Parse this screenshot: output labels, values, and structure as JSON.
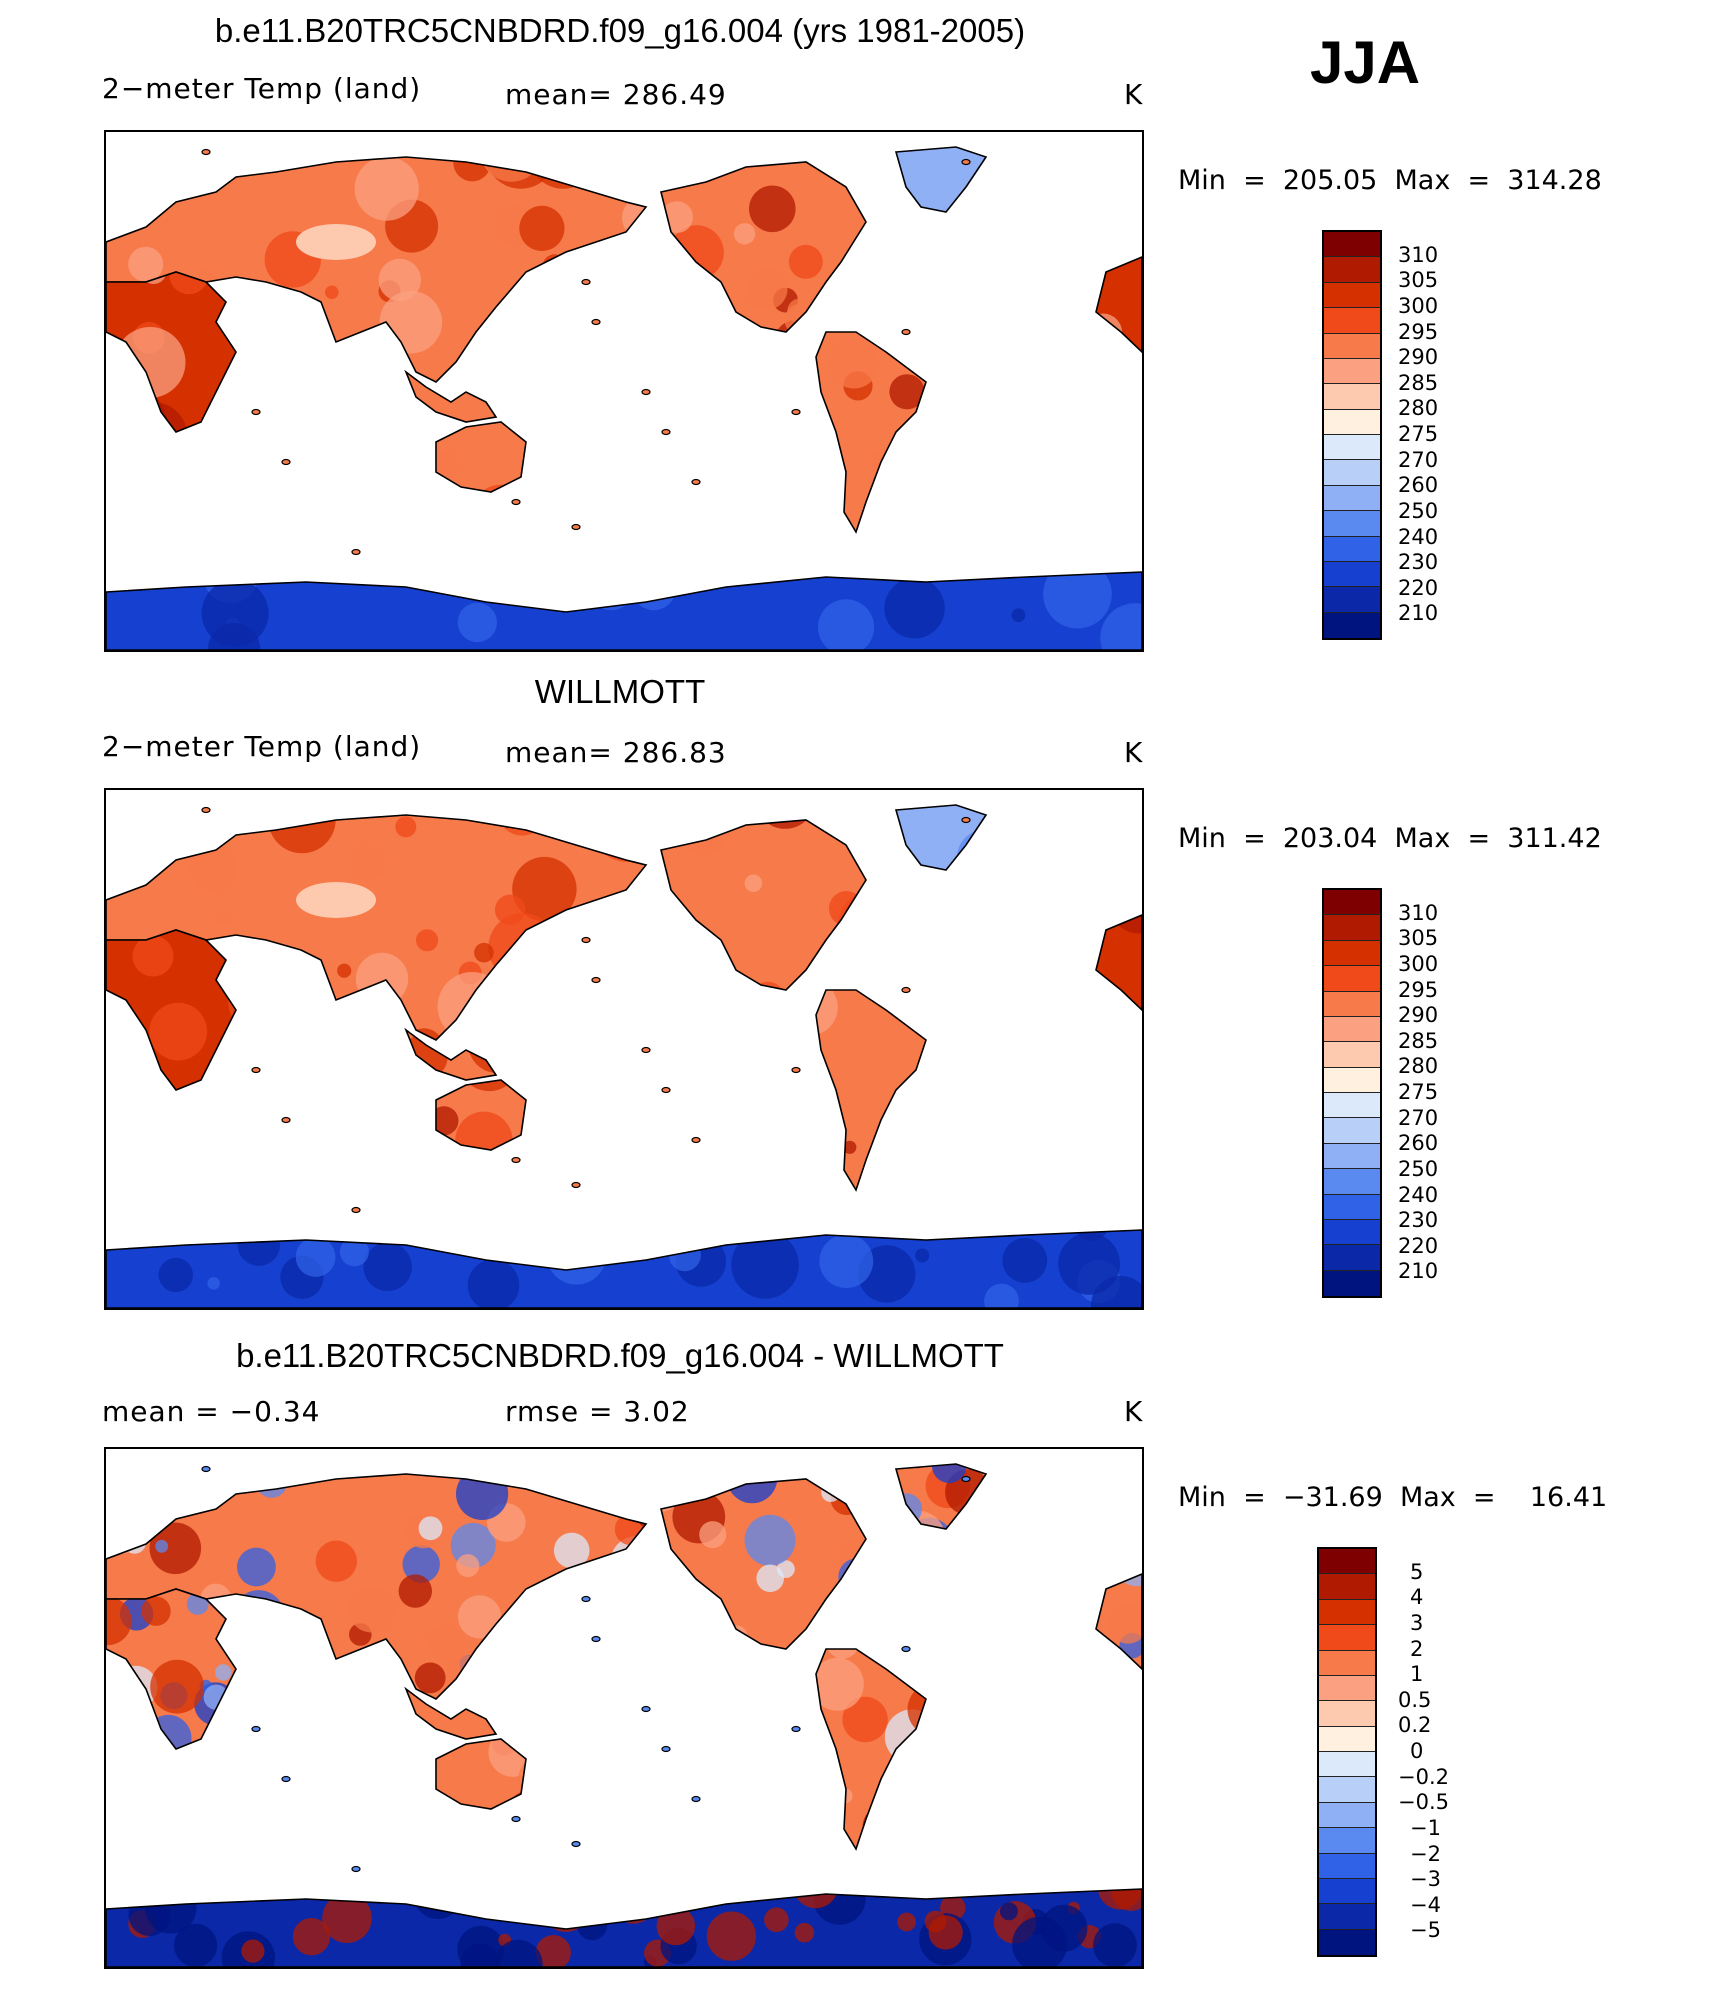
{
  "season": "JJA",
  "units": "K",
  "panels": [
    {
      "title": "b.e11.B20TRC5CNBDRD.f09_g16.004 (yrs 1981-2005)",
      "variable": "2−meter Temp (land)",
      "stat": "mean=  286.49",
      "units": "K",
      "minmax": "Min  =  205.05  Max  =  314.28",
      "colorbar_labels": [
        "310",
        "305",
        "300",
        "295",
        "290",
        "285",
        "280",
        "275",
        "270",
        "260",
        "250",
        "240",
        "230",
        "220",
        "210"
      ],
      "map_description": "model 2m land temperature"
    },
    {
      "title": "WILLMOTT",
      "variable": "2−meter Temp (land)",
      "stat": "mean=  286.83",
      "units": "K",
      "minmax": "Min  =  203.04  Max  =  311.42",
      "colorbar_labels": [
        "310",
        "305",
        "300",
        "295",
        "290",
        "285",
        "280",
        "275",
        "270",
        "260",
        "250",
        "240",
        "230",
        "220",
        "210"
      ],
      "map_description": "observed 2m land temperature"
    },
    {
      "title": "b.e11.B20TRC5CNBDRD.f09_g16.004 - WILLMOTT",
      "variable": "mean =    −0.34",
      "stat": "rmse =     3.02",
      "units": "K",
      "minmax": "Min  =  −31.69  Max  =    16.41",
      "colorbar_labels": [
        "5",
        "4",
        "3",
        "2",
        "1",
        "0.5",
        "0.2",
        "0",
        "−0.2",
        "−0.5",
        "−1",
        "−2",
        "−3",
        "−4",
        "−5"
      ],
      "map_description": "difference model minus observations"
    }
  ],
  "colors": {
    "absolute_scale": [
      "#7f0000",
      "#b01a00",
      "#d43000",
      "#f04a1a",
      "#f77a4a",
      "#fba080",
      "#fdcab0",
      "#fff0e0",
      "#dce9fb",
      "#b8d0f8",
      "#8fb0f5",
      "#5a8af0",
      "#2f62e6",
      "#1640d0",
      "#0a28a8",
      "#001480"
    ],
    "ocean": "#ffffff",
    "coast": "#000000"
  },
  "chart_data": {
    "type": "heatmap",
    "title": "JJA 2-meter Temp (land)",
    "panels": [
      {
        "name": "b.e11.B20TRC5CNBDRD.f09_g16.004 (yrs 1981-2005)",
        "mean": 286.49,
        "min": 205.05,
        "max": 314.28,
        "units": "K"
      },
      {
        "name": "WILLMOTT",
        "mean": 286.83,
        "min": 203.04,
        "max": 311.42,
        "units": "K"
      },
      {
        "name": "b.e11.B20TRC5CNBDRD.f09_g16.004 - WILLMOTT",
        "mean": -0.34,
        "rmse": 3.02,
        "min": -31.69,
        "max": 16.41,
        "units": "K"
      }
    ],
    "absolute_levels": [
      210,
      220,
      230,
      240,
      250,
      260,
      270,
      275,
      280,
      285,
      290,
      295,
      300,
      305,
      310
    ],
    "difference_levels": [
      -5,
      -4,
      -3,
      -2,
      -1,
      -0.5,
      -0.2,
      0,
      0.2,
      0.5,
      1,
      2,
      3,
      4,
      5
    ]
  }
}
